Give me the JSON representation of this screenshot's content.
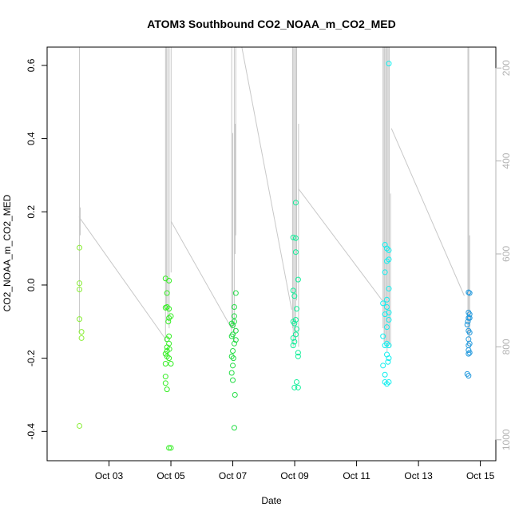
{
  "chart_data": {
    "type": "scatter",
    "title": "ATOM3 Southbound CO2_NOAA_m_CO2_MED",
    "xlabel": "Date",
    "ylabel": "CO2_NOAA_m_CO2_MED",
    "xlim": [
      "2017-10-01T00:00",
      "2017-10-15T12:00"
    ],
    "ylim": [
      -0.48,
      0.65
    ],
    "y2lim": [
      1045,
      155
    ],
    "x_ticks": [
      {
        "at": "2017-10-03",
        "label": "Oct 03"
      },
      {
        "at": "2017-10-05",
        "label": "Oct 05"
      },
      {
        "at": "2017-10-07",
        "label": "Oct 07"
      },
      {
        "at": "2017-10-09",
        "label": "Oct 09"
      },
      {
        "at": "2017-10-11",
        "label": "Oct 11"
      },
      {
        "at": "2017-10-13",
        "label": "Oct 13"
      },
      {
        "at": "2017-10-15",
        "label": "Oct 15"
      }
    ],
    "y_ticks": [
      -0.4,
      -0.2,
      0.0,
      0.2,
      0.4,
      0.6
    ],
    "y_tick_labels": [
      "-0.4",
      "-0.2",
      "0.0",
      "0.2",
      "0.4",
      "0.6"
    ],
    "y2_ticks": [
      200,
      400,
      600,
      800,
      1000
    ],
    "y2_tick_labels": [
      "200",
      "400",
      "600",
      "800",
      "1000"
    ],
    "grid": false,
    "legend": "none",
    "colors": {
      "flight1": "#88ee33",
      "flight2": "#33ee22",
      "flight3": "#22dd44",
      "flight4": "#11ee99",
      "flight5": "#11eeee",
      "flight6": "#2299dd",
      "pressure_line": "#c8c8c8",
      "axis": "#000000",
      "axis_right": "#b3b3b3"
    },
    "series": [
      {
        "color_key": "flight1",
        "points": [
          [
            "2017-10-02T01:06",
            0.102
          ],
          [
            "2017-10-02T01:06",
            0.005
          ],
          [
            "2017-10-02T01:06",
            -0.012
          ],
          [
            "2017-10-02T01:06",
            -0.093
          ],
          [
            "2017-10-02T01:06",
            -0.385
          ],
          [
            "2017-10-02T02:40",
            -0.128
          ],
          [
            "2017-10-02T02:40",
            -0.145
          ]
        ]
      },
      {
        "color_key": "flight2",
        "points": [
          [
            "2017-10-04T19:50",
            0.018
          ],
          [
            "2017-10-04T19:50",
            -0.062
          ],
          [
            "2017-10-04T19:50",
            -0.188
          ],
          [
            "2017-10-04T19:50",
            -0.215
          ],
          [
            "2017-10-04T19:50",
            -0.25
          ],
          [
            "2017-10-04T19:50",
            -0.268
          ],
          [
            "2017-10-04T21:00",
            -0.022
          ],
          [
            "2017-10-04T21:00",
            -0.06
          ],
          [
            "2017-10-04T21:00",
            -0.148
          ],
          [
            "2017-10-04T21:00",
            -0.17
          ],
          [
            "2017-10-04T21:00",
            -0.18
          ],
          [
            "2017-10-04T21:00",
            -0.195
          ],
          [
            "2017-10-04T21:00",
            -0.285
          ],
          [
            "2017-10-04T22:30",
            0.012
          ],
          [
            "2017-10-04T22:30",
            -0.065
          ],
          [
            "2017-10-04T22:30",
            -0.09
          ],
          [
            "2017-10-04T22:30",
            -0.14
          ],
          [
            "2017-10-04T22:30",
            -0.16
          ],
          [
            "2017-10-04T22:30",
            -0.2
          ],
          [
            "2017-10-04T22:30",
            -0.445
          ],
          [
            "2017-10-05T00:00",
            -0.085
          ],
          [
            "2017-10-05T00:00",
            -0.215
          ],
          [
            "2017-10-05T00:00",
            -0.445
          ],
          [
            "2017-10-04T22:00",
            -0.1
          ],
          [
            "2017-10-04T22:50",
            -0.175
          ]
        ]
      },
      {
        "color_key": "flight3",
        "points": [
          [
            "2017-10-06T23:10",
            -0.105
          ],
          [
            "2017-10-06T23:10",
            -0.14
          ],
          [
            "2017-10-06T23:10",
            -0.195
          ],
          [
            "2017-10-06T23:10",
            -0.24
          ],
          [
            "2017-10-07T00:00",
            -0.11
          ],
          [
            "2017-10-07T00:00",
            -0.135
          ],
          [
            "2017-10-07T00:00",
            -0.18
          ],
          [
            "2017-10-07T00:00",
            -0.22
          ],
          [
            "2017-10-07T00:00",
            -0.26
          ],
          [
            "2017-10-07T01:10",
            -0.06
          ],
          [
            "2017-10-07T01:10",
            -0.085
          ],
          [
            "2017-10-07T01:10",
            -0.1
          ],
          [
            "2017-10-07T01:10",
            -0.16
          ],
          [
            "2017-10-07T01:10",
            -0.39
          ],
          [
            "2017-10-07T02:20",
            -0.022
          ],
          [
            "2017-10-07T02:20",
            -0.125
          ],
          [
            "2017-10-07T02:20",
            -0.15
          ],
          [
            "2017-10-07T01:40",
            -0.3
          ],
          [
            "2017-10-07T00:30",
            -0.2
          ]
        ]
      },
      {
        "color_key": "flight4",
        "points": [
          [
            "2017-10-08T22:50",
            0.13
          ],
          [
            "2017-10-08T22:50",
            -0.015
          ],
          [
            "2017-10-08T22:50",
            -0.1
          ],
          [
            "2017-10-08T22:50",
            -0.145
          ],
          [
            "2017-10-08T22:50",
            -0.165
          ],
          [
            "2017-10-08T23:50",
            -0.03
          ],
          [
            "2017-10-08T23:50",
            -0.105
          ],
          [
            "2017-10-08T23:50",
            -0.155
          ],
          [
            "2017-10-08T23:50",
            -0.28
          ],
          [
            "2017-10-09T00:50",
            0.225
          ],
          [
            "2017-10-09T00:50",
            0.128
          ],
          [
            "2017-10-09T00:50",
            0.09
          ],
          [
            "2017-10-09T00:50",
            -0.095
          ],
          [
            "2017-10-09T00:50",
            -0.135
          ],
          [
            "2017-10-09T01:30",
            -0.065
          ],
          [
            "2017-10-09T01:30",
            -0.12
          ],
          [
            "2017-10-09T01:30",
            -0.265
          ],
          [
            "2017-10-09T02:40",
            0.015
          ],
          [
            "2017-10-09T02:40",
            -0.185
          ],
          [
            "2017-10-09T02:40",
            -0.195
          ],
          [
            "2017-10-09T02:40",
            -0.28
          ]
        ]
      },
      {
        "color_key": "flight5",
        "points": [
          [
            "2017-10-11T20:30",
            -0.05
          ],
          [
            "2017-10-11T20:30",
            -0.14
          ],
          [
            "2017-10-11T20:30",
            -0.22
          ],
          [
            "2017-10-11T22:00",
            0.11
          ],
          [
            "2017-10-11T22:00",
            0.035
          ],
          [
            "2017-10-11T22:00",
            -0.08
          ],
          [
            "2017-10-11T22:00",
            -0.165
          ],
          [
            "2017-10-11T22:00",
            -0.245
          ],
          [
            "2017-10-11T22:00",
            -0.265
          ],
          [
            "2017-10-11T23:30",
            0.1
          ],
          [
            "2017-10-11T23:30",
            0.065
          ],
          [
            "2017-10-11T23:30",
            -0.04
          ],
          [
            "2017-10-11T23:30",
            -0.06
          ],
          [
            "2017-10-11T23:30",
            -0.115
          ],
          [
            "2017-10-11T23:30",
            -0.16
          ],
          [
            "2017-10-11T23:30",
            -0.19
          ],
          [
            "2017-10-11T23:30",
            -0.27
          ],
          [
            "2017-10-12T01:00",
            0.605
          ],
          [
            "2017-10-12T01:00",
            0.095
          ],
          [
            "2017-10-12T01:00",
            0.07
          ],
          [
            "2017-10-12T01:00",
            -0.01
          ],
          [
            "2017-10-12T01:00",
            -0.075
          ],
          [
            "2017-10-12T01:00",
            -0.095
          ],
          [
            "2017-10-12T01:00",
            -0.165
          ],
          [
            "2017-10-12T01:00",
            -0.2
          ],
          [
            "2017-10-12T01:00",
            -0.265
          ],
          [
            "2017-10-12T00:20",
            -0.21
          ]
        ]
      },
      {
        "color_key": "flight6",
        "points": [
          [
            "2017-10-14T13:50",
            -0.108
          ],
          [
            "2017-10-14T13:50",
            -0.243
          ],
          [
            "2017-10-14T14:50",
            -0.02
          ],
          [
            "2017-10-14T14:50",
            -0.075
          ],
          [
            "2017-10-14T14:50",
            -0.09
          ],
          [
            "2017-10-14T14:50",
            -0.125
          ],
          [
            "2017-10-14T14:50",
            -0.148
          ],
          [
            "2017-10-14T14:50",
            -0.165
          ],
          [
            "2017-10-14T14:50",
            -0.178
          ],
          [
            "2017-10-14T14:50",
            -0.188
          ],
          [
            "2017-10-14T14:50",
            -0.248
          ],
          [
            "2017-10-14T15:40",
            -0.022
          ],
          [
            "2017-10-14T15:40",
            -0.08
          ],
          [
            "2017-10-14T15:40",
            -0.09
          ],
          [
            "2017-10-14T15:40",
            -0.13
          ],
          [
            "2017-10-14T15:40",
            -0.16
          ],
          [
            "2017-10-14T15:40",
            -0.185
          ],
          [
            "2017-10-14T14:20",
            -0.1
          ]
        ]
      }
    ],
    "pressure_segments": [
      [
        [
          "2017-10-02T00:40",
          520
        ],
        [
          "2017-10-04T19:00",
          780
        ]
      ],
      [
        [
          "2017-10-05T00:10",
          530
        ],
        [
          "2017-10-06T23:00",
          760
        ]
      ],
      [
        [
          "2017-10-07T07:00",
          152
        ],
        [
          "2017-10-08T21:40",
          720
        ]
      ],
      [
        [
          "2017-10-09T03:00",
          460
        ],
        [
          "2017-10-11T19:50",
          700
        ]
      ],
      [
        [
          "2017-10-12T03:00",
          330
        ],
        [
          "2017-10-14T11:30",
          690
        ]
      ]
    ],
    "pressure_spikes": [
      {
        "at": "2017-10-02T01:06",
        "low": 150,
        "high": 770
      },
      {
        "at": "2017-10-02T01:40",
        "low": 500,
        "high": 560
      },
      {
        "at": "2017-10-04T19:50",
        "low": 150,
        "high": 790
      },
      {
        "at": "2017-10-04T20:30",
        "low": 150,
        "high": 720
      },
      {
        "at": "2017-10-04T21:30",
        "low": 150,
        "high": 740
      },
      {
        "at": "2017-10-04T22:40",
        "low": 150,
        "high": 760
      },
      {
        "at": "2017-10-05T00:10",
        "low": 150,
        "high": 640
      },
      {
        "at": "2017-10-06T23:10",
        "low": 150,
        "high": 770
      },
      {
        "at": "2017-10-07T00:00",
        "low": 340,
        "high": 760
      },
      {
        "at": "2017-10-07T01:10",
        "low": 150,
        "high": 790
      },
      {
        "at": "2017-10-07T02:20",
        "low": 150,
        "high": 560
      },
      {
        "at": "2017-10-07T01:50",
        "low": 320,
        "high": 600
      },
      {
        "at": "2017-10-08T22:20",
        "low": 150,
        "high": 760
      },
      {
        "at": "2017-10-08T22:50",
        "low": 150,
        "high": 800
      },
      {
        "at": "2017-10-08T23:50",
        "low": 150,
        "high": 780
      },
      {
        "at": "2017-10-09T00:50",
        "low": 150,
        "high": 790
      },
      {
        "at": "2017-10-09T01:30",
        "low": 150,
        "high": 700
      },
      {
        "at": "2017-10-09T03:00",
        "low": 320,
        "high": 800
      },
      {
        "at": "2017-10-11T20:30",
        "low": 150,
        "high": 760
      },
      {
        "at": "2017-10-11T21:20",
        "low": 150,
        "high": 790
      },
      {
        "at": "2017-10-11T22:00",
        "low": 150,
        "high": 800
      },
      {
        "at": "2017-10-11T23:00",
        "low": 150,
        "high": 790
      },
      {
        "at": "2017-10-11T23:40",
        "low": 150,
        "high": 810
      },
      {
        "at": "2017-10-12T00:30",
        "low": 150,
        "high": 800
      },
      {
        "at": "2017-10-12T01:20",
        "low": 150,
        "high": 790
      },
      {
        "at": "2017-10-12T02:20",
        "low": 470,
        "high": 800
      },
      {
        "at": "2017-10-14T14:20",
        "low": 150,
        "high": 770
      },
      {
        "at": "2017-10-14T15:00",
        "low": 150,
        "high": 800
      },
      {
        "at": "2017-10-14T15:40",
        "low": 560,
        "high": 780
      }
    ]
  }
}
